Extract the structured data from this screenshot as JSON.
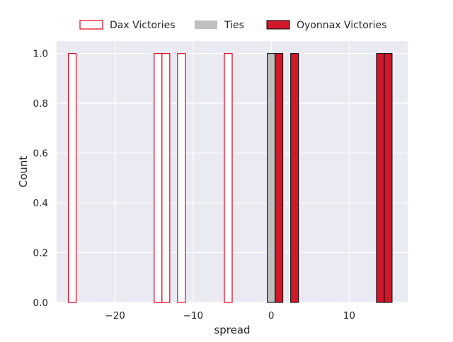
{
  "chart_data": {
    "type": "bar",
    "xlabel": "spread",
    "ylabel": "Count",
    "xlim": [
      -27.5,
      17.5
    ],
    "ylim": [
      0,
      1.05
    ],
    "grid": true,
    "legend_position": "top-center",
    "x_ticks": [
      {
        "value": -20,
        "label": "−20"
      },
      {
        "value": -10,
        "label": "−10"
      },
      {
        "value": 0,
        "label": "0"
      },
      {
        "value": 10,
        "label": "10"
      }
    ],
    "y_ticks": [
      {
        "value": 0.0,
        "label": "0.0"
      },
      {
        "value": 0.2,
        "label": "0.2"
      },
      {
        "value": 0.4,
        "label": "0.4"
      },
      {
        "value": 0.6,
        "label": "0.6"
      },
      {
        "value": 0.8,
        "label": "0.8"
      },
      {
        "value": 1.0,
        "label": "1.0"
      }
    ],
    "bin_width": 1,
    "series": [
      {
        "name": "Dax Victories",
        "style": "outline",
        "color": "#e3001b",
        "bins": [
          [
            -26,
            1
          ],
          [
            -15,
            1
          ],
          [
            -14,
            1
          ],
          [
            -12,
            1
          ],
          [
            -6,
            1
          ]
        ]
      },
      {
        "name": "Ties",
        "style": "filled",
        "color": "#bfbfbf",
        "bins": [
          [
            -0.5,
            1
          ]
        ]
      },
      {
        "name": "Oyonnax Victories",
        "style": "filled",
        "color": "#d0182b",
        "bins": [
          [
            0.5,
            1
          ],
          [
            2.5,
            1
          ],
          [
            13.5,
            1
          ],
          [
            14.5,
            1
          ]
        ]
      }
    ],
    "colors": {
      "background": "#eaeaf2",
      "grid": "#ffffff",
      "edge_dark": "#000000"
    }
  }
}
